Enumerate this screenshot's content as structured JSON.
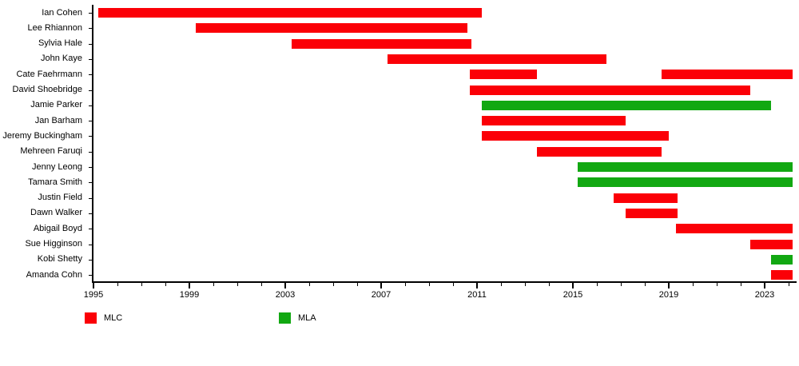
{
  "chart_data": {
    "type": "bar",
    "subtype": "gantt-timeline",
    "title": "",
    "xlabel": "",
    "ylabel": "",
    "grid": false,
    "legend_position": "bottom",
    "x_axis": {
      "min_year": 1995,
      "max_year": 2024.35,
      "major_ticks": [
        1995,
        1999,
        2003,
        2007,
        2011,
        2015,
        2019,
        2023
      ],
      "minor_tick_interval_years": 1,
      "minor_ticks_end": 2024
    },
    "colors": {
      "MLC": "#fb0007",
      "MLA": "#12a812"
    },
    "legend": [
      {
        "label": "MLC",
        "color": "#fb0007"
      },
      {
        "label": "MLA",
        "color": "#12a812"
      }
    ],
    "members": [
      {
        "name": "Ian Cohen",
        "terms": [
          {
            "role": "MLC",
            "start": 1995.2,
            "end": 2011.2
          }
        ]
      },
      {
        "name": "Lee Rhiannon",
        "terms": [
          {
            "role": "MLC",
            "start": 1999.25,
            "end": 2010.6
          }
        ]
      },
      {
        "name": "Sylvia Hale",
        "terms": [
          {
            "role": "MLC",
            "start": 2003.25,
            "end": 2010.75
          }
        ]
      },
      {
        "name": "John Kaye",
        "terms": [
          {
            "role": "MLC",
            "start": 2007.25,
            "end": 2016.4
          }
        ]
      },
      {
        "name": "Cate Faehrmann",
        "terms": [
          {
            "role": "MLC",
            "start": 2010.7,
            "end": 2013.5
          },
          {
            "role": "MLC",
            "start": 2018.7,
            "end": 2024.15
          }
        ]
      },
      {
        "name": "David Shoebridge",
        "terms": [
          {
            "role": "MLC",
            "start": 2010.7,
            "end": 2022.4
          }
        ]
      },
      {
        "name": "Jamie Parker",
        "terms": [
          {
            "role": "MLA",
            "start": 2011.2,
            "end": 2023.25
          }
        ]
      },
      {
        "name": "Jan Barham",
        "terms": [
          {
            "role": "MLC",
            "start": 2011.2,
            "end": 2017.2
          }
        ]
      },
      {
        "name": "Jeremy Buckingham",
        "terms": [
          {
            "role": "MLC",
            "start": 2011.2,
            "end": 2019.0
          }
        ]
      },
      {
        "name": "Mehreen Faruqi",
        "terms": [
          {
            "role": "MLC",
            "start": 2013.5,
            "end": 2018.7
          }
        ]
      },
      {
        "name": "Jenny Leong",
        "terms": [
          {
            "role": "MLA",
            "start": 2015.2,
            "end": 2024.15
          }
        ]
      },
      {
        "name": "Tamara Smith",
        "terms": [
          {
            "role": "MLA",
            "start": 2015.2,
            "end": 2024.15
          }
        ]
      },
      {
        "name": "Justin Field",
        "terms": [
          {
            "role": "MLC",
            "start": 2016.7,
            "end": 2019.35
          }
        ]
      },
      {
        "name": "Dawn Walker",
        "terms": [
          {
            "role": "MLC",
            "start": 2017.2,
            "end": 2019.35
          }
        ]
      },
      {
        "name": "Abigail Boyd",
        "terms": [
          {
            "role": "MLC",
            "start": 2019.3,
            "end": 2024.15
          }
        ]
      },
      {
        "name": "Sue Higginson",
        "terms": [
          {
            "role": "MLC",
            "start": 2022.4,
            "end": 2024.15
          }
        ]
      },
      {
        "name": "Kobi Shetty",
        "terms": [
          {
            "role": "MLA",
            "start": 2023.25,
            "end": 2024.15
          }
        ]
      },
      {
        "name": "Amanda Cohn",
        "terms": [
          {
            "role": "MLC",
            "start": 2023.25,
            "end": 2024.15
          }
        ]
      }
    ]
  }
}
